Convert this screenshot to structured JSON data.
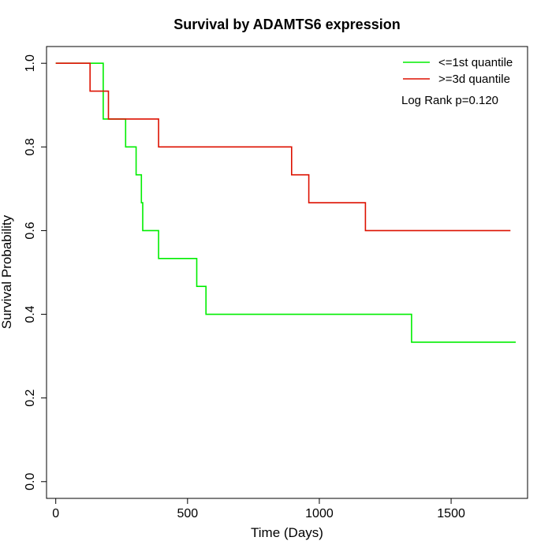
{
  "chart_data": {
    "type": "line",
    "title": "Survival by ADAMTS6 expression",
    "xlabel": "Time (Days)",
    "ylabel": "Survival Probability",
    "xlim": [
      -35,
      1790
    ],
    "ylim": [
      -0.04,
      1.04
    ],
    "x_ticks": [
      0,
      500,
      1000,
      1500
    ],
    "y_ticks": [
      0.0,
      0.2,
      0.4,
      0.6,
      0.8,
      1.0
    ],
    "x_tick_labels": [
      "0",
      "500",
      "1000",
      "1500"
    ],
    "y_tick_labels": [
      "0.0",
      "0.2",
      "0.4",
      "0.6",
      "0.8",
      "1.0"
    ],
    "step": true,
    "grid": false,
    "legend_position": "top-right",
    "annotation": "Log Rank p=0.120",
    "series": [
      {
        "name": "<=1st quantile",
        "color": "#00ee00",
        "x": [
          0,
          170,
          180,
          265,
          305,
          325,
          330,
          390,
          535,
          570,
          1350,
          1745
        ],
        "y": [
          1.0,
          1.0,
          0.8667,
          0.8,
          0.7333,
          0.6667,
          0.6,
          0.5333,
          0.4667,
          0.4,
          0.3333,
          0.3333
        ]
      },
      {
        "name": ">=3d quantile",
        "color": "#dd1100",
        "x": [
          0,
          130,
          200,
          390,
          895,
          960,
          1175,
          1725
        ],
        "y": [
          1.0,
          0.9333,
          0.8667,
          0.8,
          0.7333,
          0.6667,
          0.6,
          0.6
        ]
      }
    ]
  }
}
